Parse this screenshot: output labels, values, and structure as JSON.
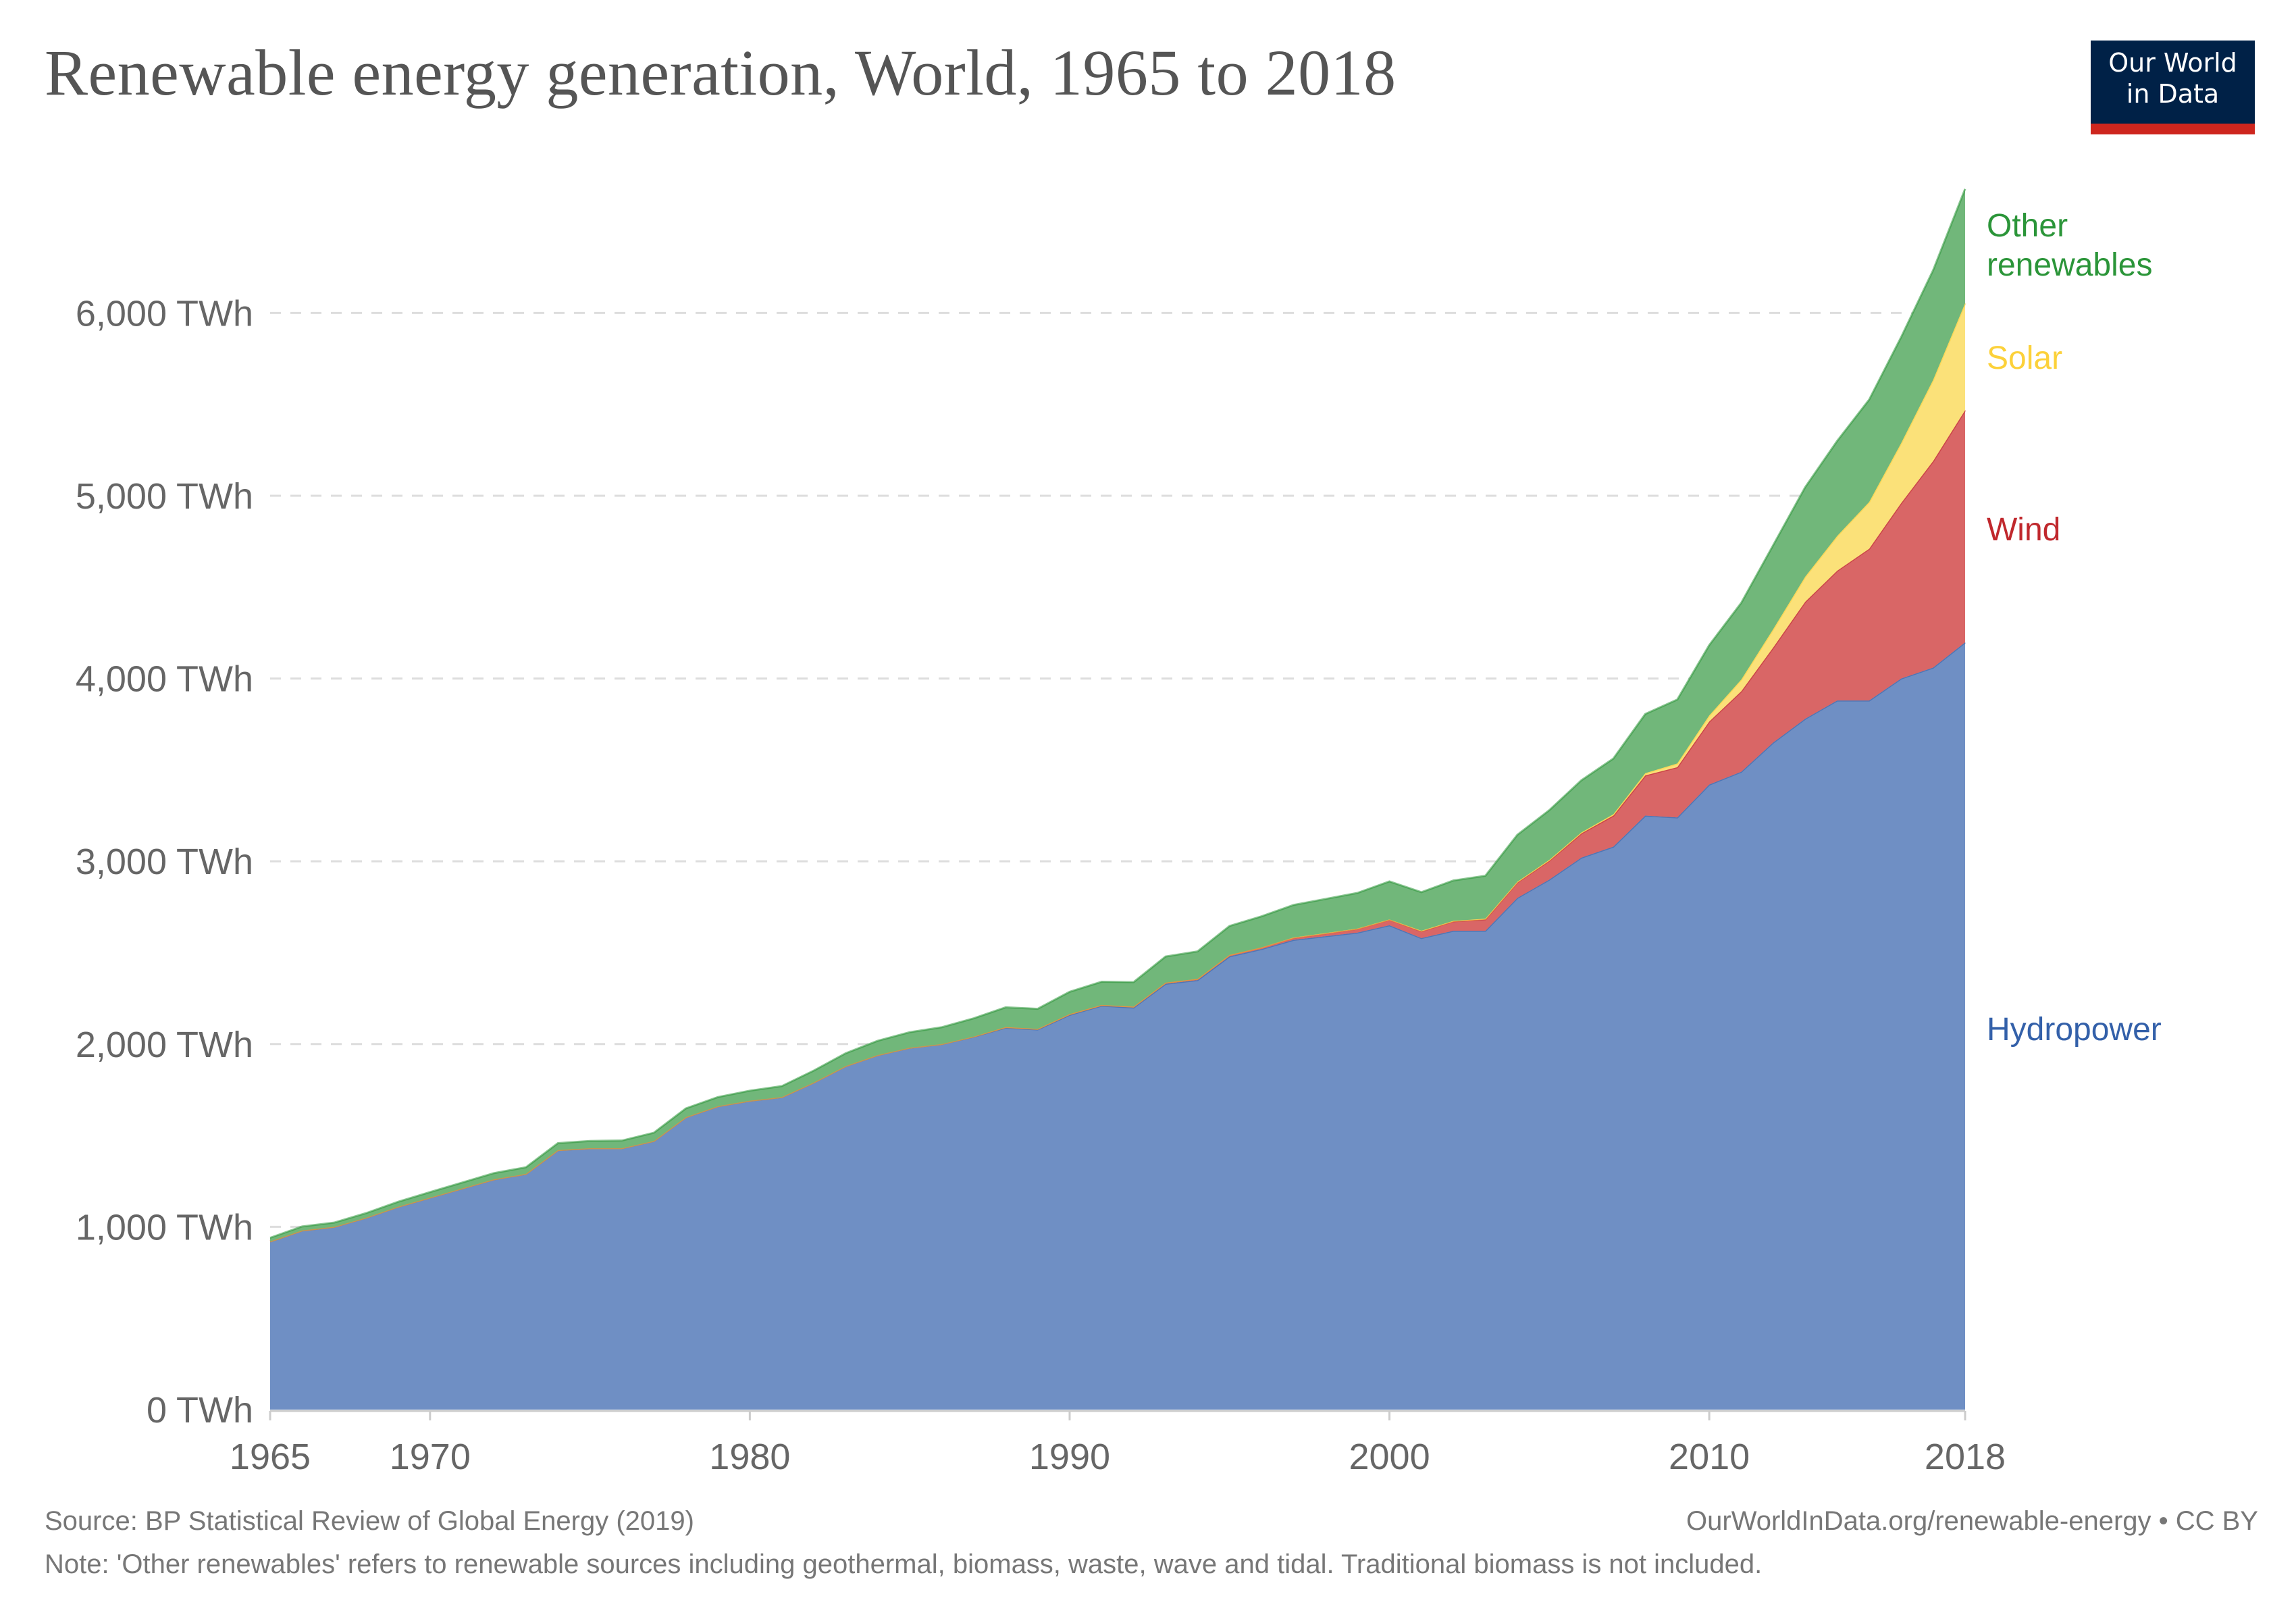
{
  "header": {
    "title": "Renewable energy generation, World, 1965 to 2018",
    "logo_line1": "Our World",
    "logo_line2": "in Data"
  },
  "footer": {
    "source": "Source: BP Statistical Review of Global Energy (2019)",
    "url": "OurWorldInData.org/renewable-energy • CC BY",
    "note": "Note: 'Other renewables' refers to renewable sources including geothermal, biomass, waste, wave and tidal. Traditional biomass is not included."
  },
  "colors": {
    "logo_bg": "#002147",
    "logo_band": "#ce261e"
  },
  "chart_data": {
    "type": "area",
    "stacked": true,
    "title": "Renewable energy generation, World, 1965 to 2018",
    "xlabel": "",
    "ylabel": "",
    "unit": "TWh",
    "xlim": [
      1965,
      2018
    ],
    "ylim": [
      0,
      6700
    ],
    "grid": true,
    "legend_placement": "right-inline",
    "y_ticks": [
      0,
      1000,
      2000,
      3000,
      4000,
      5000,
      6000
    ],
    "y_tick_labels": [
      "0 TWh",
      "1,000 TWh",
      "2,000 TWh",
      "3,000 TWh",
      "4,000 TWh",
      "5,000 TWh",
      "6,000 TWh"
    ],
    "x_ticks": [
      1965,
      1970,
      1980,
      1990,
      2000,
      2010,
      2018
    ],
    "x_tick_labels": [
      "1965",
      "1970",
      "1980",
      "1990",
      "2000",
      "2010",
      "2018"
    ],
    "x": [
      1965,
      1966,
      1967,
      1968,
      1969,
      1970,
      1971,
      1972,
      1973,
      1974,
      1975,
      1976,
      1977,
      1978,
      1979,
      1980,
      1981,
      1982,
      1983,
      1984,
      1985,
      1986,
      1987,
      1988,
      1989,
      1990,
      1991,
      1992,
      1993,
      1994,
      1995,
      1996,
      1997,
      1998,
      1999,
      2000,
      2001,
      2002,
      2003,
      2004,
      2005,
      2006,
      2007,
      2008,
      2009,
      2010,
      2011,
      2012,
      2013,
      2014,
      2015,
      2016,
      2017,
      2018
    ],
    "series": [
      {
        "name": "Hydropower",
        "color": "#6f8fc4",
        "label_color": "#3360a9",
        "values": [
          920,
          980,
          1000,
          1050,
          1110,
          1160,
          1210,
          1260,
          1290,
          1420,
          1430,
          1430,
          1470,
          1600,
          1660,
          1690,
          1710,
          1790,
          1880,
          1940,
          1980,
          2000,
          2040,
          2090,
          2080,
          2160,
          2210,
          2200,
          2330,
          2350,
          2480,
          2520,
          2570,
          2590,
          2610,
          2650,
          2580,
          2620,
          2620,
          2800,
          2900,
          3020,
          3080,
          3250,
          3240,
          3420,
          3490,
          3650,
          3780,
          3880,
          3880,
          4000,
          4060,
          4198
        ]
      },
      {
        "name": "Wind",
        "color": "#d96666",
        "label_color": "#c0282d",
        "values": [
          0,
          0,
          0,
          0,
          0,
          0,
          0,
          0,
          0,
          0,
          0,
          0,
          0,
          0,
          0,
          0,
          0,
          0,
          0,
          0,
          0,
          0,
          1,
          3,
          3,
          4,
          4,
          5,
          6,
          7,
          8,
          9,
          12,
          16,
          21,
          31,
          38,
          52,
          63,
          85,
          104,
          133,
          170,
          220,
          275,
          345,
          440,
          520,
          640,
          710,
          830,
          960,
          1130,
          1270
        ]
      },
      {
        "name": "Solar",
        "color": "#fbe179",
        "label_color": "#fcd13a",
        "values": [
          0,
          0,
          0,
          0,
          0,
          0,
          0,
          0,
          0,
          0,
          0,
          0,
          0,
          0,
          0,
          0,
          0,
          0,
          0,
          0,
          0,
          0,
          0,
          0,
          0,
          0,
          0,
          0,
          0,
          0,
          0,
          0,
          1,
          1,
          1,
          1,
          2,
          2,
          3,
          3,
          4,
          5,
          7,
          12,
          20,
          33,
          64,
          100,
          137,
          190,
          256,
          328,
          444,
          585
        ]
      },
      {
        "name": "Other renewables",
        "label_lines": [
          "Other",
          "renewables"
        ],
        "color": "#71b77a",
        "label_color": "#2b9539",
        "values": [
          20,
          22,
          23,
          25,
          27,
          30,
          32,
          34,
          36,
          38,
          40,
          42,
          45,
          48,
          50,
          55,
          60,
          65,
          70,
          78,
          85,
          92,
          100,
          108,
          110,
          122,
          127,
          134,
          143,
          150,
          158,
          170,
          178,
          187,
          195,
          208,
          211,
          221,
          235,
          257,
          272,
          285,
          305,
          324,
          350,
          385,
          420,
          460,
          490,
          520,
          560,
          580,
          600,
          626
        ]
      }
    ]
  }
}
